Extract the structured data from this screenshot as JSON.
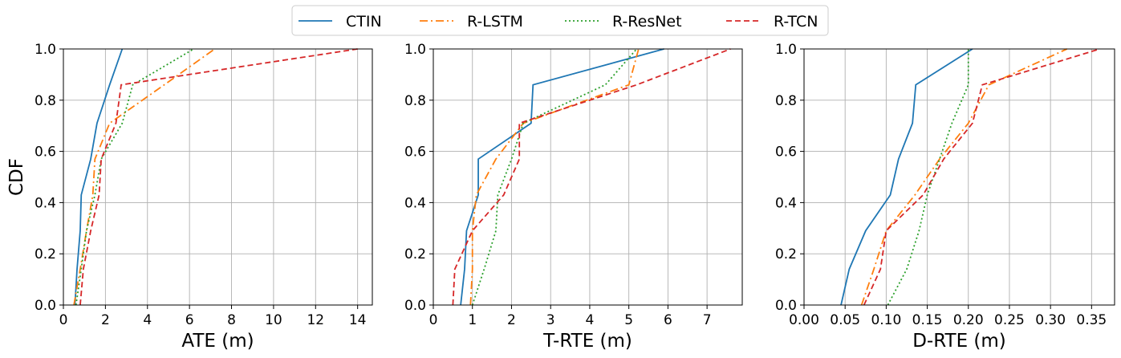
{
  "legend": {
    "placement": "top-center",
    "entries": [
      {
        "name": "CTIN",
        "color": "#1f77b4",
        "dash": "solid"
      },
      {
        "name": "R-LSTM",
        "color": "#ff7f0e",
        "dash": "dashdot"
      },
      {
        "name": "R-ResNet",
        "color": "#2ca02c",
        "dash": "dotted"
      },
      {
        "name": "R-TCN",
        "color": "#d62728",
        "dash": "dashed"
      }
    ]
  },
  "chart_data": [
    {
      "type": "line",
      "xlabel": "ATE (m)",
      "ylabel": "CDF",
      "xlim": [
        0,
        14.7
      ],
      "ylim": [
        0,
        1.0
      ],
      "xticks": [
        0,
        2,
        4,
        6,
        8,
        10,
        12,
        14
      ],
      "xtick_labels": [
        "0",
        "2",
        "4",
        "6",
        "8",
        "10",
        "12",
        "14"
      ],
      "yticks": [
        0.0,
        0.2,
        0.4,
        0.6,
        0.8,
        1.0
      ],
      "ytick_labels": [
        "0.0",
        "0.2",
        "0.4",
        "0.6",
        "0.8",
        "1.0"
      ],
      "grid": true,
      "series": [
        {
          "name": "CTIN",
          "points": [
            [
              0.55,
              0
            ],
            [
              0.65,
              0.14
            ],
            [
              0.8,
              0.29
            ],
            [
              0.85,
              0.43
            ],
            [
              1.3,
              0.57
            ],
            [
              1.6,
              0.71
            ],
            [
              2.2,
              0.86
            ],
            [
              2.8,
              1.0
            ]
          ]
        },
        {
          "name": "R-LSTM",
          "points": [
            [
              0.5,
              0
            ],
            [
              0.8,
              0.14
            ],
            [
              1.1,
              0.29
            ],
            [
              1.4,
              0.43
            ],
            [
              1.5,
              0.57
            ],
            [
              2.2,
              0.71
            ],
            [
              4.8,
              0.86
            ],
            [
              7.2,
              1.0
            ]
          ]
        },
        {
          "name": "R-ResNet",
          "points": [
            [
              0.6,
              0
            ],
            [
              0.85,
              0.14
            ],
            [
              1.1,
              0.29
            ],
            [
              1.5,
              0.43
            ],
            [
              1.8,
              0.57
            ],
            [
              2.8,
              0.71
            ],
            [
              3.3,
              0.86
            ],
            [
              6.2,
              1.0
            ]
          ]
        },
        {
          "name": "R-TCN",
          "points": [
            [
              0.8,
              0
            ],
            [
              0.95,
              0.14
            ],
            [
              1.3,
              0.29
            ],
            [
              1.7,
              0.43
            ],
            [
              1.8,
              0.57
            ],
            [
              2.5,
              0.71
            ],
            [
              2.75,
              0.86
            ],
            [
              14.0,
              1.0
            ]
          ]
        }
      ]
    },
    {
      "type": "line",
      "xlabel": "T-RTE (m)",
      "ylabel": "",
      "xlim": [
        0,
        7.9
      ],
      "ylim": [
        0,
        1.0
      ],
      "xticks": [
        0,
        1,
        2,
        3,
        4,
        5,
        6,
        7
      ],
      "xtick_labels": [
        "0",
        "1",
        "2",
        "3",
        "4",
        "5",
        "6",
        "7"
      ],
      "yticks": [
        0.0,
        0.2,
        0.4,
        0.6,
        0.8,
        1.0
      ],
      "ytick_labels": [
        "0.0",
        "0.2",
        "0.4",
        "0.6",
        "0.8",
        "1.0"
      ],
      "grid": true,
      "series": [
        {
          "name": "CTIN",
          "points": [
            [
              0.7,
              0
            ],
            [
              0.8,
              0.14
            ],
            [
              0.85,
              0.29
            ],
            [
              1.15,
              0.43
            ],
            [
              1.15,
              0.57
            ],
            [
              2.5,
              0.71
            ],
            [
              2.55,
              0.86
            ],
            [
              5.9,
              1.0
            ]
          ]
        },
        {
          "name": "R-LSTM",
          "points": [
            [
              0.95,
              0
            ],
            [
              1.0,
              0.14
            ],
            [
              1.0,
              0.29
            ],
            [
              1.1,
              0.43
            ],
            [
              1.6,
              0.57
            ],
            [
              2.3,
              0.71
            ],
            [
              5.0,
              0.86
            ],
            [
              5.25,
              1.0
            ]
          ]
        },
        {
          "name": "R-ResNet",
          "points": [
            [
              1.0,
              0
            ],
            [
              1.3,
              0.14
            ],
            [
              1.6,
              0.29
            ],
            [
              1.65,
              0.43
            ],
            [
              2.0,
              0.57
            ],
            [
              2.3,
              0.71
            ],
            [
              4.4,
              0.86
            ],
            [
              5.2,
              1.0
            ]
          ]
        },
        {
          "name": "R-TCN",
          "points": [
            [
              0.5,
              0
            ],
            [
              0.55,
              0.14
            ],
            [
              1.0,
              0.29
            ],
            [
              1.8,
              0.43
            ],
            [
              2.2,
              0.57
            ],
            [
              2.2,
              0.71
            ],
            [
              5.2,
              0.86
            ],
            [
              7.6,
              1.0
            ]
          ]
        }
      ]
    },
    {
      "type": "line",
      "xlabel": "D-RTE (m)",
      "ylabel": "",
      "xlim": [
        0,
        0.378
      ],
      "ylim": [
        0,
        1.0
      ],
      "xticks": [
        0,
        0.05,
        0.1,
        0.15,
        0.2,
        0.25,
        0.3,
        0.35
      ],
      "xtick_labels": [
        "0.00",
        "0.05",
        "0.10",
        "0.15",
        "0.20",
        "0.25",
        "0.30",
        "0.35"
      ],
      "yticks": [
        0.0,
        0.2,
        0.4,
        0.6,
        0.8,
        1.0
      ],
      "ytick_labels": [
        "0.0",
        "0.2",
        "0.4",
        "0.6",
        "0.8",
        "1.0"
      ],
      "grid": true,
      "series": [
        {
          "name": "CTIN",
          "points": [
            [
              0.045,
              0
            ],
            [
              0.055,
              0.14
            ],
            [
              0.075,
              0.29
            ],
            [
              0.105,
              0.43
            ],
            [
              0.115,
              0.57
            ],
            [
              0.132,
              0.71
            ],
            [
              0.136,
              0.86
            ],
            [
              0.205,
              1.0
            ]
          ]
        },
        {
          "name": "R-LSTM",
          "points": [
            [
              0.07,
              0
            ],
            [
              0.085,
              0.14
            ],
            [
              0.1,
              0.29
            ],
            [
              0.135,
              0.43
            ],
            [
              0.165,
              0.57
            ],
            [
              0.2,
              0.71
            ],
            [
              0.225,
              0.86
            ],
            [
              0.32,
              1.0
            ]
          ]
        },
        {
          "name": "R-ResNet",
          "points": [
            [
              0.102,
              0
            ],
            [
              0.125,
              0.14
            ],
            [
              0.14,
              0.29
            ],
            [
              0.15,
              0.43
            ],
            [
              0.165,
              0.57
            ],
            [
              0.18,
              0.71
            ],
            [
              0.2,
              0.86
            ],
            [
              0.2,
              1.0
            ]
          ]
        },
        {
          "name": "R-TCN",
          "points": [
            [
              0.073,
              0
            ],
            [
              0.093,
              0.14
            ],
            [
              0.1,
              0.29
            ],
            [
              0.145,
              0.43
            ],
            [
              0.17,
              0.57
            ],
            [
              0.205,
              0.71
            ],
            [
              0.217,
              0.86
            ],
            [
              0.36,
              1.0
            ]
          ]
        }
      ]
    }
  ]
}
